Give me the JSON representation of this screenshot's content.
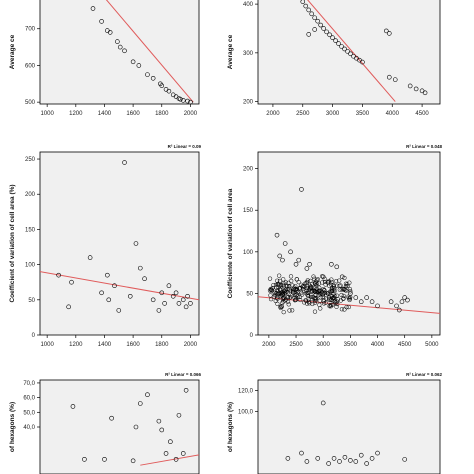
{
  "chart_data": [
    {
      "type": "scatter",
      "panel": "top-left",
      "ylabel": "Average ce",
      "xlabel": "",
      "r2_label": "",
      "xlim": [
        950,
        2060
      ],
      "ylim": [
        495,
        860
      ],
      "xticks": [
        "1000",
        "1200",
        "1400",
        "1600",
        "1800",
        "2000"
      ],
      "yticks": [
        "500",
        "600",
        "700"
      ],
      "trend": {
        "x1": 1150,
        "y1": 900,
        "x2": 2020,
        "y2": 500
      },
      "points": [
        [
          1320,
          755
        ],
        [
          1380,
          720
        ],
        [
          1420,
          695
        ],
        [
          1440,
          690
        ],
        [
          1490,
          665
        ],
        [
          1510,
          650
        ],
        [
          1540,
          640
        ],
        [
          1600,
          610
        ],
        [
          1640,
          600
        ],
        [
          1700,
          575
        ],
        [
          1740,
          565
        ],
        [
          1790,
          550
        ],
        [
          1800,
          545
        ],
        [
          1830,
          535
        ],
        [
          1850,
          530
        ],
        [
          1880,
          520
        ],
        [
          1900,
          515
        ],
        [
          1920,
          510
        ],
        [
          1930,
          508
        ],
        [
          1950,
          505
        ],
        [
          1980,
          503
        ],
        [
          2000,
          500
        ]
      ]
    },
    {
      "type": "scatter",
      "panel": "top-right",
      "ylabel": "Average ce",
      "xlabel": "",
      "r2_label": "",
      "xlim": [
        1750,
        4800
      ],
      "ylim": [
        195,
        470
      ],
      "xticks": [
        "2000",
        "2500",
        "3000",
        "3500",
        "4000",
        "4500"
      ],
      "yticks": [
        "200",
        "300",
        "400"
      ],
      "trend": {
        "x1": 2150,
        "y1": 470,
        "x2": 4050,
        "y2": 200
      },
      "points": [
        [
          2200,
          465
        ],
        [
          2250,
          455
        ],
        [
          2300,
          445
        ],
        [
          2350,
          435
        ],
        [
          2400,
          425
        ],
        [
          2450,
          415
        ],
        [
          2500,
          405
        ],
        [
          2550,
          396
        ],
        [
          2600,
          388
        ],
        [
          2650,
          380
        ],
        [
          2700,
          372
        ],
        [
          2750,
          365
        ],
        [
          2800,
          357
        ],
        [
          2850,
          350
        ],
        [
          2900,
          343
        ],
        [
          2950,
          337
        ],
        [
          3000,
          331
        ],
        [
          3050,
          325
        ],
        [
          3100,
          319
        ],
        [
          3150,
          313
        ],
        [
          3200,
          308
        ],
        [
          3250,
          303
        ],
        [
          3300,
          298
        ],
        [
          3350,
          293
        ],
        [
          3400,
          289
        ],
        [
          3450,
          285
        ],
        [
          3500,
          281
        ],
        [
          2600,
          338
        ],
        [
          2700,
          348
        ],
        [
          2400,
          430
        ],
        [
          3900,
          345
        ],
        [
          3950,
          340
        ],
        [
          3950,
          250
        ],
        [
          4050,
          245
        ],
        [
          4300,
          232
        ],
        [
          4400,
          226
        ],
        [
          4500,
          222
        ],
        [
          4550,
          218
        ]
      ]
    },
    {
      "type": "scatter",
      "panel": "middle-left",
      "ylabel": "Coefficient of variation of cell area (%)",
      "xlabel": "",
      "r2_label": "R² Linear = 0.09",
      "xlim": [
        950,
        2060
      ],
      "ylim": [
        0,
        260
      ],
      "xticks": [
        "1000",
        "1200",
        "1400",
        "1600",
        "1800",
        "2000"
      ],
      "yticks": [
        "0",
        "50",
        "100",
        "150",
        "200",
        "250"
      ],
      "trend": {
        "x1": 950,
        "y1": 90,
        "x2": 2060,
        "y2": 50
      },
      "points": [
        [
          1080,
          85
        ],
        [
          1150,
          40
        ],
        [
          1170,
          75
        ],
        [
          1300,
          110
        ],
        [
          1380,
          60
        ],
        [
          1420,
          85
        ],
        [
          1430,
          50
        ],
        [
          1470,
          70
        ],
        [
          1500,
          35
        ],
        [
          1540,
          245
        ],
        [
          1580,
          55
        ],
        [
          1620,
          130
        ],
        [
          1650,
          95
        ],
        [
          1680,
          80
        ],
        [
          1740,
          50
        ],
        [
          1780,
          35
        ],
        [
          1800,
          60
        ],
        [
          1820,
          45
        ],
        [
          1850,
          70
        ],
        [
          1880,
          55
        ],
        [
          1900,
          60
        ],
        [
          1920,
          45
        ],
        [
          1950,
          50
        ],
        [
          1970,
          40
        ],
        [
          1980,
          55
        ],
        [
          2000,
          45
        ]
      ]
    },
    {
      "type": "scatter",
      "panel": "middle-right",
      "ylabel": "Coefficiente of variation of cell area",
      "xlabel": "",
      "r2_label": "R² Linear = 0.048",
      "xlim": [
        1800,
        5150
      ],
      "ylim": [
        0,
        220
      ],
      "xticks": [
        "2000",
        "2500",
        "3000",
        "3500",
        "4000",
        "4500",
        "5000"
      ],
      "yticks": [
        "0",
        "50",
        "100",
        "150",
        "200"
      ],
      "trend": {
        "x1": 1800,
        "y1": 46,
        "x2": 5150,
        "y2": 26
      },
      "cluster": {
        "x_min": 2020,
        "x_max": 3500,
        "y_min": 24,
        "y_max": 76,
        "count": 300,
        "seed": 7
      },
      "points": [
        [
          2150,
          120
        ],
        [
          2200,
          95
        ],
        [
          2250,
          90
        ],
        [
          2300,
          110
        ],
        [
          2400,
          100
        ],
        [
          2500,
          85
        ],
        [
          2550,
          90
        ],
        [
          2600,
          175
        ],
        [
          2700,
          80
        ],
        [
          2750,
          85
        ],
        [
          3000,
          70
        ],
        [
          3150,
          85
        ],
        [
          3250,
          82
        ],
        [
          3350,
          70
        ],
        [
          3500,
          50
        ],
        [
          3600,
          45
        ],
        [
          3700,
          40
        ],
        [
          3800,
          45
        ],
        [
          3900,
          40
        ],
        [
          4000,
          35
        ],
        [
          4250,
          40
        ],
        [
          4350,
          35
        ],
        [
          4400,
          30
        ],
        [
          4450,
          40
        ],
        [
          4500,
          45
        ],
        [
          4550,
          42
        ]
      ]
    },
    {
      "type": "scatter",
      "panel": "bottom-left",
      "ylabel": "of hexagons (%)",
      "xlabel": "",
      "r2_label": "R² Linear = 0.066",
      "xlim": [
        950,
        2060
      ],
      "ylim": [
        8,
        72
      ],
      "xticks": [],
      "yticks": [
        "40,0",
        "50,0",
        "60,0",
        "70,0"
      ],
      "trend": {
        "x1": 1650,
        "y1": 14,
        "x2": 2060,
        "y2": 21
      },
      "points": [
        [
          1180,
          54
        ],
        [
          1260,
          18
        ],
        [
          1400,
          18
        ],
        [
          1450,
          46
        ],
        [
          1600,
          17
        ],
        [
          1620,
          40
        ],
        [
          1650,
          56
        ],
        [
          1700,
          62
        ],
        [
          1780,
          44
        ],
        [
          1800,
          38
        ],
        [
          1830,
          22
        ],
        [
          1860,
          30
        ],
        [
          1900,
          18
        ],
        [
          1920,
          48
        ],
        [
          1950,
          22
        ],
        [
          1970,
          65
        ]
      ]
    },
    {
      "type": "scatter",
      "panel": "bottom-right",
      "ylabel": "of hexagons (%)",
      "xlabel": "",
      "r2_label": "R² Linear = 0.062",
      "xlim": [
        1800,
        5150
      ],
      "ylim": [
        40,
        130
      ],
      "xticks": [],
      "yticks": [
        "100,0",
        "120,0"
      ],
      "trend": null,
      "points": [
        [
          2350,
          55
        ],
        [
          2600,
          60
        ],
        [
          2700,
          52
        ],
        [
          2900,
          55
        ],
        [
          3000,
          108
        ],
        [
          3100,
          50
        ],
        [
          3200,
          55
        ],
        [
          3300,
          52
        ],
        [
          3400,
          56
        ],
        [
          3500,
          53
        ],
        [
          3600,
          52
        ],
        [
          3700,
          58
        ],
        [
          3800,
          50
        ],
        [
          3900,
          55
        ],
        [
          4000,
          60
        ],
        [
          4500,
          54
        ]
      ]
    }
  ]
}
